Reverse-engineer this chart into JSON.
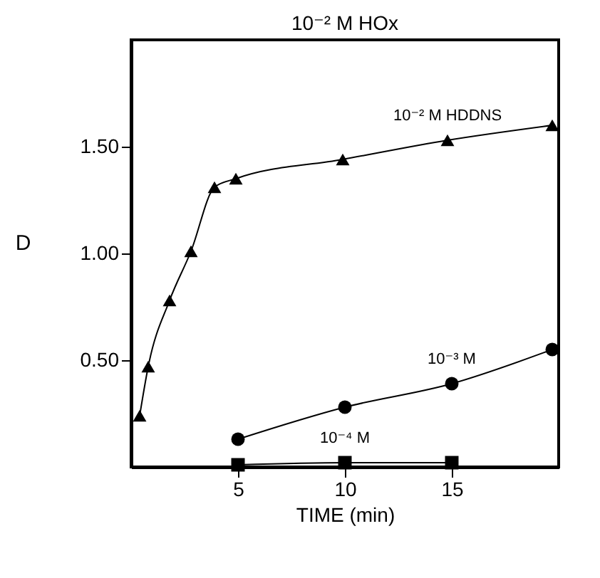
{
  "chart_data": {
    "type": "line",
    "title": "10⁻² M HOx",
    "xlabel": "TIME (min)",
    "ylabel": "D",
    "xlim": [
      0,
      20
    ],
    "ylim": [
      0,
      2
    ],
    "xticks": [
      5,
      10,
      15
    ],
    "yticks": [
      {
        "value": 0.5,
        "label": "0.50"
      },
      {
        "value": 1,
        "label": "1.00"
      },
      {
        "value": 1.5,
        "label": "1.50"
      }
    ],
    "line_style": "solid",
    "series": [
      {
        "name": "10⁻² M HDDNS",
        "color": "#000000",
        "marker": "triangle",
        "x": [
          0.4,
          0.8,
          1.8,
          2.8,
          3.9,
          4.9,
          9.9,
          14.8,
          19.7
        ],
        "values": [
          0.24,
          0.47,
          0.78,
          1.01,
          1.31,
          1.35,
          1.44,
          1.53,
          1.6
        ]
      },
      {
        "name": "10⁻³ M",
        "color": "#000000",
        "marker": "circle",
        "x": [
          5,
          10,
          15,
          19.7
        ],
        "values": [
          0.13,
          0.28,
          0.39,
          0.55
        ]
      },
      {
        "name": "10⁻⁴ M",
        "color": "#000000",
        "marker": "square",
        "x": [
          5,
          10,
          15
        ],
        "values": [
          0.01,
          0.02,
          0.02
        ]
      }
    ]
  }
}
